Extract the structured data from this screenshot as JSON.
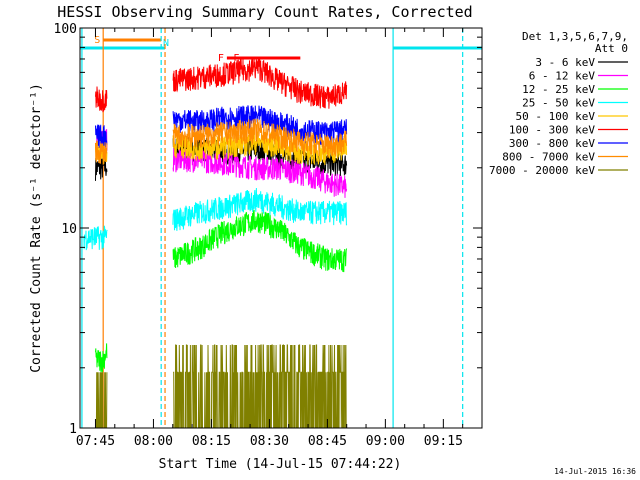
{
  "chart_data": {
    "type": "line",
    "title": "HESSI Observing Summary Count Rates, Corrected",
    "xlabel": "Start Time (14-Jul-15 07:44:22)",
    "ylabel": "Corrected Count Rate (s⁻¹ detector⁻¹)",
    "y_scale": "log",
    "ylim": [
      1,
      100
    ],
    "xlim": [
      "07:41",
      "09:25"
    ],
    "x_ticks": [
      "07:45",
      "08:00",
      "08:15",
      "08:30",
      "08:45",
      "09:00",
      "09:15"
    ],
    "y_ticks": [
      "1",
      "10",
      "100"
    ],
    "grid": false,
    "legend_position": "top-right",
    "legend_header": [
      "Det 1,3,5,6,7,9,",
      "Att 0"
    ],
    "footer_date": "14-Jul-2015 16:36",
    "flags": [
      {
        "label": "S",
        "color": "#ff7f00",
        "start": "07:47",
        "end": "08:02"
      },
      {
        "label": "N",
        "color": "#00e5ee",
        "start": "07:41",
        "end": "08:03"
      },
      {
        "label": "N",
        "color": "#00e5ee",
        "start": "09:02",
        "end": "09:25"
      },
      {
        "label": "F",
        "color": "#ff0000",
        "start": "08:19",
        "end": "08:26"
      },
      {
        "label": "F",
        "color": "#ff0000",
        "start": "08:23",
        "end": "08:38"
      }
    ],
    "vertical_lines": [
      {
        "time": "07:41:30",
        "color": "#00e5ee",
        "style": "solid"
      },
      {
        "time": "07:47",
        "color": "#ff7f00",
        "style": "solid"
      },
      {
        "time": "08:02",
        "color": "#00e5ee",
        "style": "dashed"
      },
      {
        "time": "08:03",
        "color": "#ff7f00",
        "style": "dashed"
      },
      {
        "time": "09:02",
        "color": "#00e5ee",
        "style": "solid"
      },
      {
        "time": "09:20",
        "color": "#00e5ee",
        "style": "dashed"
      }
    ],
    "series": [
      {
        "name": "3 - 6 keV",
        "color": "#000000",
        "x": [
          "07:45",
          "07:47",
          "08:05",
          "08:12",
          "08:20",
          "08:27",
          "08:32",
          "08:38",
          "08:45",
          "08:50"
        ],
        "y": [
          20,
          20,
          25,
          25,
          24,
          25,
          23,
          22,
          21,
          21
        ]
      },
      {
        "name": "6 - 12 keV",
        "color": "#ff00ff",
        "x": [
          "07:45",
          "07:47",
          "08:05",
          "08:12",
          "08:20",
          "08:27",
          "08:32",
          "08:38",
          "08:45",
          "08:50"
        ],
        "y": [
          28,
          28,
          22,
          22,
          21,
          20,
          20,
          19,
          17,
          16
        ]
      },
      {
        "name": "12 - 25 keV",
        "color": "#00ff00",
        "x": [
          "07:45",
          "07:47",
          "08:05",
          "08:12",
          "08:20",
          "08:27",
          "08:32",
          "08:38",
          "08:45",
          "08:50"
        ],
        "y": [
          2.2,
          2.2,
          7,
          8,
          10,
          11,
          10,
          8,
          7,
          7
        ]
      },
      {
        "name": "25 - 50 keV",
        "color": "#00ffff",
        "x": [
          "07:42",
          "07:45",
          "07:47",
          "08:05",
          "08:12",
          "08:20",
          "08:27",
          "08:32",
          "08:38",
          "08:45",
          "08:50"
        ],
        "y": [
          9,
          9,
          9,
          11,
          12,
          13,
          14,
          13,
          12,
          12,
          12
        ]
      },
      {
        "name": "50 - 100 keV",
        "color": "#ffc800",
        "x": [
          "07:45",
          "07:47",
          "08:05",
          "08:12",
          "08:20",
          "08:27",
          "08:32",
          "08:38",
          "08:45",
          "08:50"
        ],
        "y": [
          25,
          24,
          26,
          25,
          26,
          27,
          26,
          24,
          24,
          25
        ]
      },
      {
        "name": "100 - 300 keV",
        "color": "#ff0000",
        "x": [
          "07:45",
          "07:47",
          "08:05",
          "08:12",
          "08:20",
          "08:27",
          "08:32",
          "08:38",
          "08:45",
          "08:50"
        ],
        "y": [
          45,
          44,
          55,
          57,
          60,
          64,
          55,
          48,
          45,
          48
        ]
      },
      {
        "name": "300 - 800 keV",
        "color": "#0000ff",
        "x": [
          "07:45",
          "07:47",
          "08:05",
          "08:12",
          "08:20",
          "08:27",
          "08:32",
          "08:38",
          "08:45",
          "08:50"
        ],
        "y": [
          29,
          29,
          35,
          34,
          36,
          36,
          34,
          31,
          30,
          31
        ]
      },
      {
        "name": "800 - 7000 keV",
        "color": "#ff8c00",
        "x": [
          "07:45",
          "07:47",
          "08:05",
          "08:12",
          "08:20",
          "08:27",
          "08:32",
          "08:38",
          "08:45",
          "08:50"
        ],
        "y": [
          24,
          24,
          29,
          29,
          30,
          31,
          29,
          27,
          26,
          27
        ]
      },
      {
        "name": "7000 - 20000 keV",
        "color": "#808000",
        "x": [
          "07:45",
          "07:47",
          "08:05",
          "08:12",
          "08:20",
          "08:27",
          "08:32",
          "08:38",
          "08:45",
          "08:50"
        ],
        "y": [
          1.5,
          1.5,
          1.3,
          1.4,
          1.5,
          1.6,
          1.5,
          1.3,
          1.2,
          1.3
        ]
      }
    ]
  }
}
